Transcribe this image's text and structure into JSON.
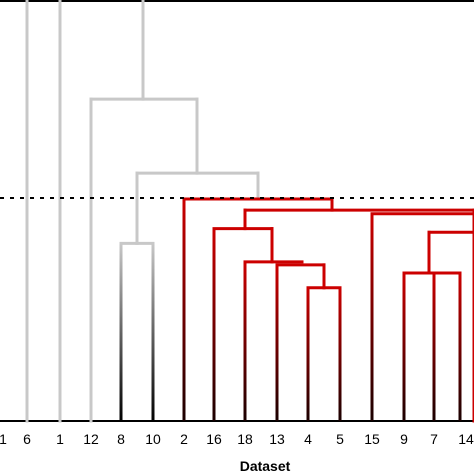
{
  "chart_data": {
    "type": "dendrogram",
    "xlabel": "Dataset",
    "leaves": [
      "1",
      "6",
      "1",
      "12",
      "8",
      "10",
      "2",
      "16",
      "18",
      "13",
      "4",
      "5",
      "15",
      "9",
      "7",
      "14"
    ],
    "cut_threshold": {
      "style": "dotted",
      "height": 0.6
    },
    "link_heights": {
      "root": 1.42,
      "upper": 1.26,
      "mid_upper": 1.17,
      "mid": 0.87,
      "lower": 0.67,
      "leaf_pair_8_10": 0.48
    },
    "red_cluster_heights": {
      "top": 0.6,
      "right_top": 0.57,
      "left_sub": 0.52,
      "pair_18_13": 0.43,
      "pair_4_5": 0.36,
      "right_sub": 0.56,
      "right_mid": 0.51,
      "pair_9_7": 0.4
    },
    "colors": {
      "upper_tree": "#c8c8c8",
      "cluster": "#cc0000",
      "cluster_base": "#1a0000",
      "threshold": "#000000",
      "axis": "#000000"
    }
  }
}
